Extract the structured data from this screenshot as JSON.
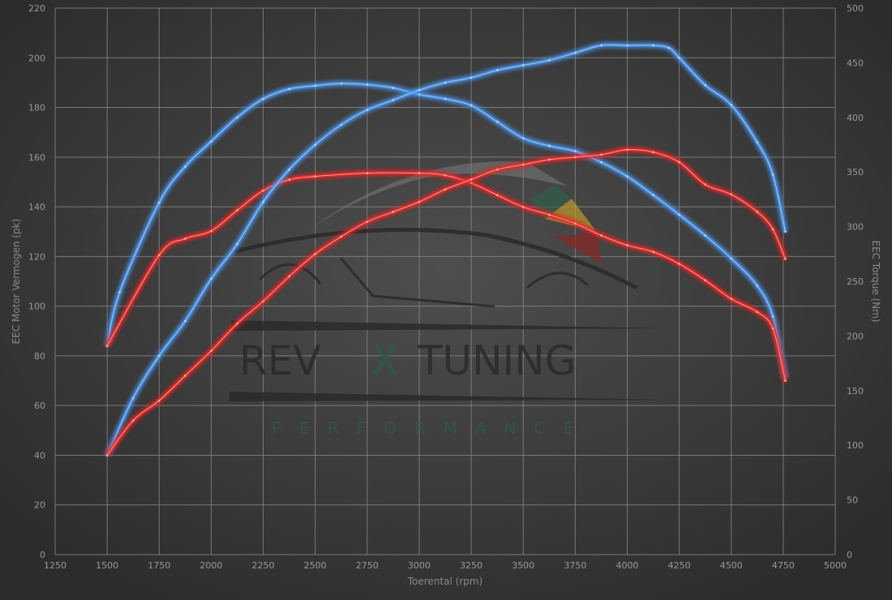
{
  "chart_data": {
    "type": "line",
    "xlabel": "Toerental (rpm)",
    "ylabel_left": "EEC Motor Vermogen (pk)",
    "ylabel_right": "EEC Torque (Nm)",
    "xlim": [
      1250,
      5000
    ],
    "ylim_left": [
      0,
      220
    ],
    "ylim_right": [
      0,
      500
    ],
    "x_ticks": [
      1250,
      1500,
      1750,
      2000,
      2250,
      2500,
      2750,
      3000,
      3250,
      3500,
      3750,
      4000,
      4250,
      4500,
      4750,
      5000
    ],
    "y_ticks_left": [
      0,
      20,
      40,
      60,
      80,
      100,
      120,
      140,
      160,
      180,
      200,
      220
    ],
    "y_ticks_right": [
      0,
      50,
      100,
      150,
      200,
      250,
      300,
      350,
      400,
      450,
      500
    ],
    "grid": true,
    "background_colors": [
      "#4e4e4e",
      "#2c2c2c"
    ],
    "logo_text": {
      "brand_left": "REV",
      "brand_x": "X",
      "brand_right": "TUNING",
      "tagline": "PERFORMANCE"
    },
    "series": [
      {
        "axis": "right",
        "color": "#4a90e2",
        "x": [
          1500,
          1560,
          1750,
          1875,
          2000,
          2125,
          2250,
          2375,
          2500,
          2625,
          2750,
          2875,
          3000,
          3125,
          3250,
          3375,
          3500,
          3625,
          3750,
          3875,
          4000,
          4125,
          4250,
          4375,
          4500,
          4625,
          4700,
          4760
        ],
        "values": [
          191,
          240,
          322,
          355,
          378,
          400,
          417,
          426,
          429,
          431,
          430,
          427,
          421,
          417,
          411,
          396,
          381,
          374,
          369,
          359,
          346,
          329,
          311,
          292,
          271,
          246,
          218,
          162
        ]
      },
      {
        "axis": "right",
        "color": "#e02a2a",
        "x": [
          1500,
          1750,
          1875,
          2000,
          2125,
          2250,
          2375,
          2500,
          2750,
          3000,
          3125,
          3250,
          3375,
          3500,
          3625,
          3750,
          3875,
          4000,
          4125,
          4250,
          4375,
          4500,
          4625,
          4700,
          4760
        ],
        "values": [
          191,
          274,
          289,
          296,
          315,
          333,
          343,
          346,
          349,
          349,
          347,
          340,
          329,
          318,
          311,
          303,
          292,
          283,
          277,
          266,
          251,
          234,
          222,
          207,
          159
        ]
      },
      {
        "axis": "left",
        "color": "#4a90e2",
        "x": [
          1500,
          1625,
          1750,
          1875,
          2000,
          2125,
          2250,
          2375,
          2500,
          2625,
          2750,
          2875,
          3000,
          3125,
          3250,
          3375,
          3500,
          3625,
          3750,
          3875,
          4000,
          4125,
          4200,
          4250,
          4375,
          4500,
          4625,
          4700,
          4760
        ],
        "values": [
          40,
          63,
          80,
          94,
          111,
          125,
          142,
          155,
          165,
          173,
          179,
          183,
          187,
          190,
          192,
          195,
          197,
          199,
          202,
          205,
          205,
          205,
          204,
          200,
          189,
          181,
          166,
          153,
          130
        ]
      },
      {
        "axis": "left",
        "color": "#e02a2a",
        "x": [
          1500,
          1625,
          1750,
          1875,
          2000,
          2125,
          2250,
          2375,
          2500,
          2625,
          2750,
          2875,
          3000,
          3125,
          3250,
          3375,
          3500,
          3625,
          3750,
          3875,
          4000,
          4125,
          4250,
          4375,
          4500,
          4625,
          4700,
          4760
        ],
        "values": [
          40,
          54,
          62,
          72,
          82,
          93,
          102,
          112,
          121,
          128,
          134,
          138,
          142,
          147,
          151,
          155,
          157,
          159,
          160,
          161,
          163,
          162,
          158,
          149,
          145,
          138,
          131,
          119
        ]
      }
    ]
  }
}
